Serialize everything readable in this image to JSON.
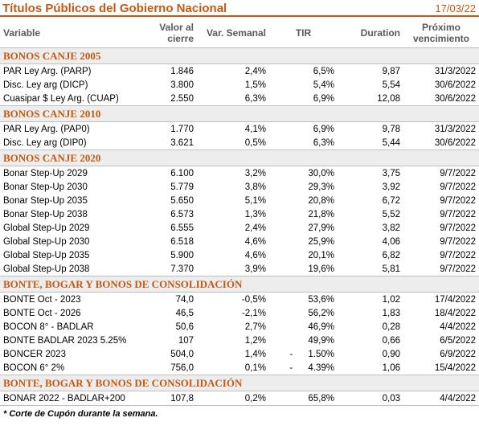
{
  "header": {
    "title": "Títulos Públicos del Gobierno Nacional",
    "date": "17/03/22"
  },
  "columns": [
    "Variable",
    "Valor al cierre",
    "Var. Semanal",
    "TIR",
    "Duration",
    "Próximo vencimiento"
  ],
  "sections": [
    {
      "title": "BONOS CANJE 2005",
      "rows": [
        [
          "PAR Ley Arg. (PARP)",
          "1.846",
          "2,4%",
          "6,5%",
          "9,87",
          "31/3/2022"
        ],
        [
          "Disc. Ley arg (DICP)",
          "3.800",
          "1,5%",
          "5,4%",
          "5,54",
          "30/6/2022"
        ],
        [
          "Cuasipar $ Ley Arg. (CUAP)",
          "2.550",
          "6,3%",
          "6,9%",
          "12,08",
          "30/6/2022"
        ]
      ]
    },
    {
      "title": "BONOS CANJE 2010",
      "rows": [
        [
          "PAR Ley Arg. (PAP0)",
          "1.770",
          "4,1%",
          "6,9%",
          "9,78",
          "31/3/2022"
        ],
        [
          "Disc. Ley arg (DIP0)",
          "3.621",
          "0,5%",
          "6,3%",
          "5,44",
          "30/6/2022"
        ]
      ]
    },
    {
      "title": "BONOS CANJE 2020",
      "rows": [
        [
          "Bonar Step-Up 2029",
          "6.100",
          "3,2%",
          "30,0%",
          "3,75",
          "9/7/2022"
        ],
        [
          "Bonar Step-Up 2030",
          "5.779",
          "3,8%",
          "29,3%",
          "3,92",
          "9/7/2022"
        ],
        [
          "Bonar Step-Up 2035",
          "5.650",
          "5,1%",
          "20,8%",
          "6,72",
          "9/7/2022"
        ],
        [
          "Bonar Step-Up 2038",
          "6.573",
          "1,3%",
          "21,8%",
          "5,52",
          "9/7/2022"
        ],
        [
          "Global Step-Up 2029",
          "6.555",
          "2,4%",
          "27,9%",
          "3,82",
          "9/7/2022"
        ],
        [
          "Global Step-Up 2030",
          "6.518",
          "4,6%",
          "25,9%",
          "4,06",
          "9/7/2022"
        ],
        [
          "Global Step-Up 2035",
          "5.900",
          "4,6%",
          "20,1%",
          "6,82",
          "9/7/2022"
        ],
        [
          "Global Step-Up 2038",
          "7.370",
          "3,9%",
          "19,6%",
          "5,81",
          "9/7/2022"
        ]
      ]
    },
    {
      "title": "BONTE, BOGAR Y BONOS DE CONSOLIDACIÓN",
      "rows": [
        [
          "BONTE Oct - 2023",
          "74,0",
          "-0,5%",
          "53,6%",
          "1,02",
          "17/4/2022"
        ],
        [
          "BONTE Oct - 2026",
          "46,5",
          "-2,1%",
          "56,2%",
          "1,83",
          "18/4/2022"
        ],
        [
          "BOCON 8° - BADLAR",
          "50,6",
          "2,7%",
          "46,9%",
          "0,28",
          "4/4/2022"
        ],
        [
          "BONTE BADLAR 2023 5.25%",
          "107",
          "1,2%",
          "49,9%",
          "0,66",
          "6/5/2022"
        ],
        [
          "BONCER 2023",
          "504,0",
          "1,4%",
          "-      1.50%",
          "0,90",
          "6/9/2022"
        ],
        [
          "BOCON 6° 2%",
          "756,0",
          "0,1%",
          "-      4.39%",
          "1,06",
          "15/4/2022"
        ]
      ]
    },
    {
      "title": "BONTE, BOGAR Y BONOS DE CONSOLIDACIÓN",
      "rows": [
        [
          "BONAR 2022 - BADLAR+200",
          "107,8",
          "0,2%",
          "65,8%",
          "0,03",
          "4/4/2022"
        ]
      ]
    }
  ],
  "footnote": "* Corte de Cupón durante la semana."
}
